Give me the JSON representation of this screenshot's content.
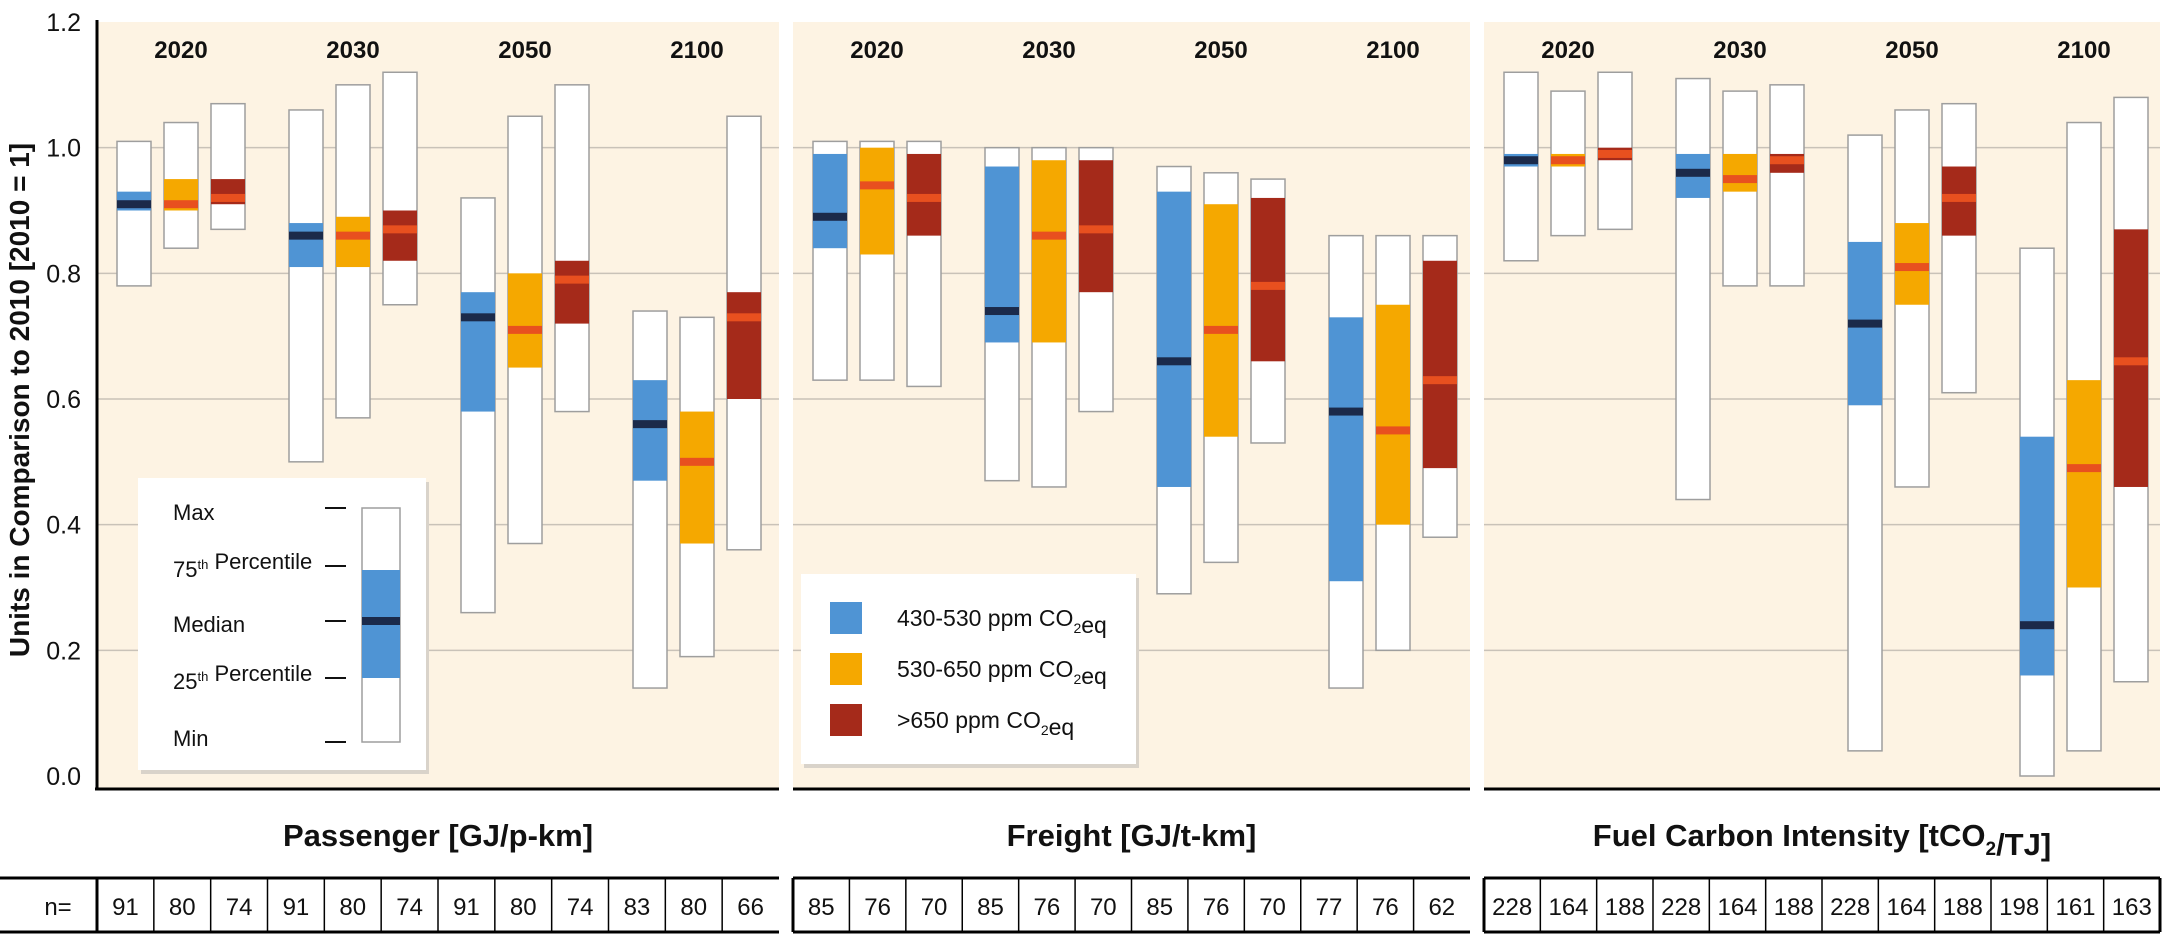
{
  "chart_data": {
    "type": "box",
    "ylabel": "Units in Comparison to 2010 [2010 = 1]",
    "ylim": [
      0,
      1.2
    ],
    "yticks": [
      "0.0",
      "0.2",
      "0.4",
      "0.6",
      "0.8",
      "1.0",
      "1.2"
    ],
    "grid": true,
    "n_label": "n=",
    "colors": {
      "s1": "#4f94d4",
      "s2": "#f5a800",
      "s3": "#a52a1a",
      "median_dark": "#1b2a4a",
      "median_light": "#e8501f",
      "panel_bg": "#fdf3e3"
    },
    "series": [
      {
        "name": "430-530 ppm CO₂eq",
        "label_main": "430-530 ppm CO",
        "label_sub": "2",
        "label_tail": "eq"
      },
      {
        "name": "530-650 ppm CO₂eq",
        "label_main": "530-650 ppm CO",
        "label_sub": "2",
        "label_tail": "eq"
      },
      {
        "name": ">650 ppm CO₂eq",
        "label_main": ">650 ppm CO",
        "label_sub": "2",
        "label_tail": "eq"
      }
    ],
    "key": {
      "max": "Max",
      "p75_pre": "75",
      "p75_sup": "th",
      "p75_post": " Percentile",
      "median": "Median",
      "p25_pre": "25",
      "p25_sup": "th",
      "p25_post": " Percentile",
      "min": "Min"
    },
    "panels": [
      {
        "title": "Passenger [GJ/p-km]",
        "years": [
          "2020",
          "2030",
          "2050",
          "2100"
        ],
        "n": [
          "91",
          "80",
          "74",
          "91",
          "80",
          "74",
          "91",
          "80",
          "74",
          "83",
          "80",
          "66"
        ],
        "boxes": [
          [
            [
              0.78,
              0.9,
              0.91,
              0.93,
              1.01
            ],
            [
              0.84,
              0.9,
              0.91,
              0.95,
              1.04
            ],
            [
              0.87,
              0.91,
              0.92,
              0.95,
              1.07
            ]
          ],
          [
            [
              0.5,
              0.81,
              0.86,
              0.88,
              1.06
            ],
            [
              0.57,
              0.81,
              0.86,
              0.89,
              1.1
            ],
            [
              0.75,
              0.82,
              0.87,
              0.9,
              1.12
            ]
          ],
          [
            [
              0.26,
              0.58,
              0.73,
              0.77,
              0.92
            ],
            [
              0.37,
              0.65,
              0.71,
              0.8,
              1.05
            ],
            [
              0.58,
              0.72,
              0.79,
              0.82,
              1.1
            ]
          ],
          [
            [
              0.14,
              0.47,
              0.56,
              0.63,
              0.74
            ],
            [
              0.19,
              0.37,
              0.5,
              0.58,
              0.73
            ],
            [
              0.36,
              0.6,
              0.73,
              0.77,
              1.05
            ]
          ]
        ]
      },
      {
        "title": "Freight [GJ/t-km]",
        "years": [
          "2020",
          "2030",
          "2050",
          "2100"
        ],
        "n": [
          "85",
          "76",
          "70",
          "85",
          "76",
          "70",
          "85",
          "76",
          "70",
          "77",
          "76",
          "62"
        ],
        "boxes": [
          [
            [
              0.63,
              0.84,
              0.89,
              0.99,
              1.01
            ],
            [
              0.63,
              0.83,
              0.94,
              1.0,
              1.01
            ],
            [
              0.62,
              0.86,
              0.92,
              0.99,
              1.01
            ]
          ],
          [
            [
              0.47,
              0.69,
              0.74,
              0.97,
              1.0
            ],
            [
              0.46,
              0.69,
              0.86,
              0.98,
              1.0
            ],
            [
              0.58,
              0.77,
              0.87,
              0.98,
              1.0
            ]
          ],
          [
            [
              0.29,
              0.46,
              0.66,
              0.93,
              0.97
            ],
            [
              0.34,
              0.54,
              0.71,
              0.91,
              0.96
            ],
            [
              0.53,
              0.66,
              0.78,
              0.92,
              0.95
            ]
          ],
          [
            [
              0.14,
              0.31,
              0.58,
              0.73,
              0.86
            ],
            [
              0.2,
              0.4,
              0.55,
              0.75,
              0.86
            ],
            [
              0.38,
              0.49,
              0.63,
              0.82,
              0.86
            ]
          ]
        ]
      },
      {
        "title_main": "Fuel Carbon Intensity [tCO",
        "title_sub": "2",
        "title_tail": "/TJ]",
        "years": [
          "2020",
          "2030",
          "2050",
          "2100"
        ],
        "n": [
          "228",
          "164",
          "188",
          "228",
          "164",
          "188",
          "228",
          "164",
          "188",
          "198",
          "161",
          "163"
        ],
        "boxes": [
          [
            [
              0.82,
              0.97,
              0.98,
              0.99,
              1.12
            ],
            [
              0.86,
              0.97,
              0.98,
              0.99,
              1.09
            ],
            [
              0.87,
              0.98,
              0.99,
              1.0,
              1.12
            ]
          ],
          [
            [
              0.44,
              0.92,
              0.96,
              0.99,
              1.11
            ],
            [
              0.78,
              0.93,
              0.95,
              0.99,
              1.09
            ],
            [
              0.78,
              0.96,
              0.98,
              0.99,
              1.1
            ]
          ],
          [
            [
              0.04,
              0.59,
              0.72,
              0.85,
              1.02
            ],
            [
              0.46,
              0.75,
              0.81,
              0.88,
              1.06
            ],
            [
              0.61,
              0.86,
              0.92,
              0.97,
              1.07
            ]
          ],
          [
            [
              0.0,
              0.16,
              0.24,
              0.54,
              0.84
            ],
            [
              0.04,
              0.3,
              0.49,
              0.63,
              1.04
            ],
            [
              0.15,
              0.46,
              0.66,
              0.87,
              1.08
            ]
          ]
        ]
      }
    ]
  }
}
